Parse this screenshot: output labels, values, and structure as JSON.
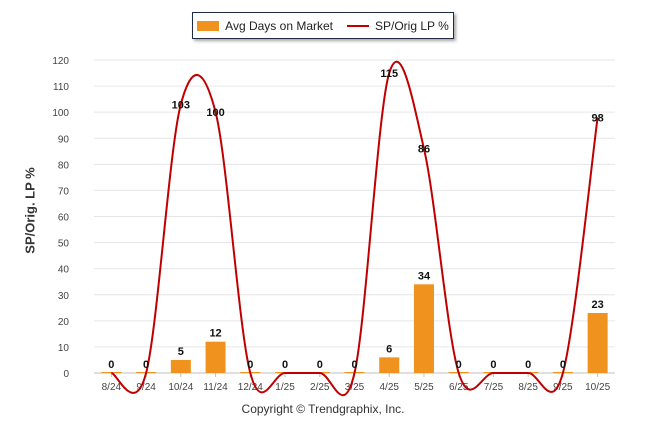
{
  "legend": {
    "bar_label": "Avg Days on Market",
    "line_label": "SP/Orig LP %"
  },
  "footer": "Copyright © Trendgraphix, Inc.",
  "chart_data": {
    "type": "bar",
    "title": "",
    "ylabel": "SP/Orig. LP %",
    "xlabel": "",
    "ylim": [
      0,
      120
    ],
    "yticks": [
      0,
      10,
      20,
      30,
      40,
      50,
      60,
      70,
      80,
      90,
      100,
      110,
      120
    ],
    "grid": true,
    "legend_position": "top-center",
    "categories": [
      "8/24",
      "9/24",
      "10/24",
      "11/24",
      "12/24",
      "1/25",
      "2/25",
      "3/25",
      "4/25",
      "5/25",
      "6/25",
      "7/25",
      "8/25",
      "9/25",
      "10/25"
    ],
    "series": [
      {
        "name": "Avg Days on Market",
        "kind": "bar",
        "color": "#f0921e",
        "values": [
          0,
          0,
          5,
          12,
          0,
          0,
          0,
          0,
          6,
          34,
          0,
          0,
          0,
          0,
          23
        ]
      },
      {
        "name": "SP/Orig LP %",
        "kind": "line",
        "color": "#c00000",
        "values": [
          0,
          0,
          103,
          100,
          0,
          0,
          0,
          0,
          115,
          86,
          0,
          0,
          0,
          0,
          98
        ]
      }
    ]
  }
}
